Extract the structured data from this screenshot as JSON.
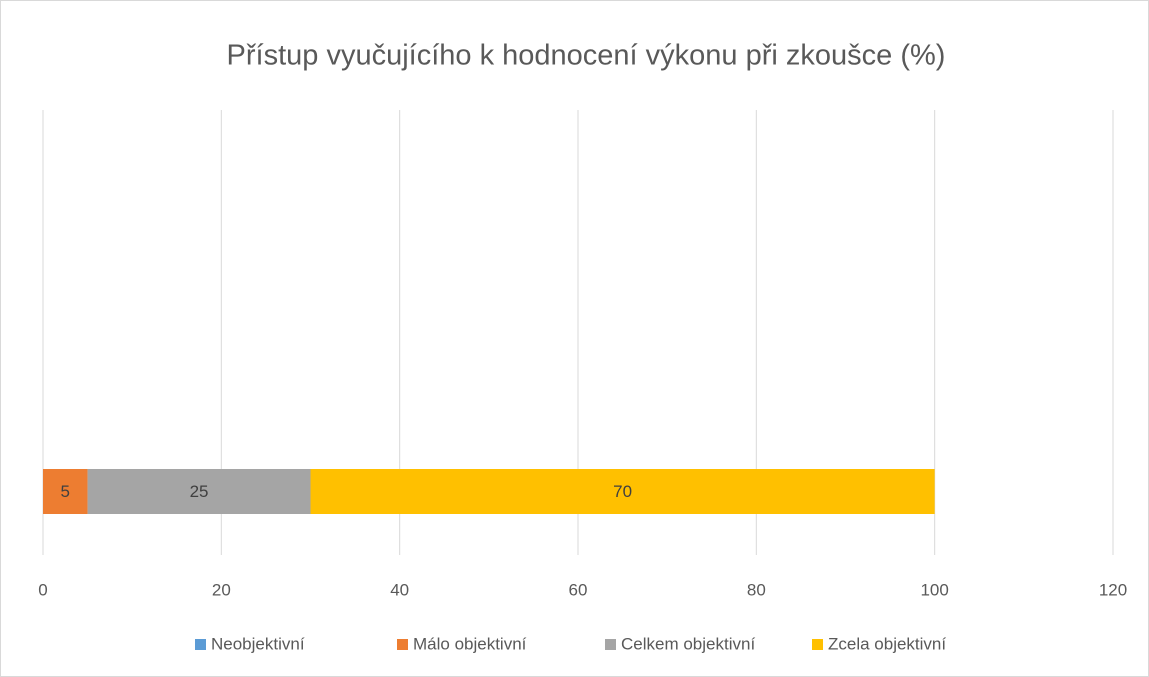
{
  "chart_data": {
    "type": "stacked_bar_horizontal",
    "title": "Přístup vyučujícího k hodnocení výkonu při zkoušce (%)",
    "categories": [
      null
    ],
    "series": [
      {
        "name": "Neobjektivní",
        "color": "#5b9bd5",
        "values": [
          0
        ]
      },
      {
        "name": "Málo objektivní",
        "color": "#ed7d31",
        "values": [
          5
        ]
      },
      {
        "name": "Celkem objektivní",
        "color": "#a5a5a5",
        "values": [
          25
        ]
      },
      {
        "name": "Zcela objektivní",
        "color": "#ffc000",
        "values": [
          70
        ]
      }
    ],
    "xlim": [
      0,
      120
    ],
    "xticks": [
      0,
      20,
      40,
      60,
      80,
      100,
      120
    ],
    "grid": true,
    "legend": "bottom"
  }
}
